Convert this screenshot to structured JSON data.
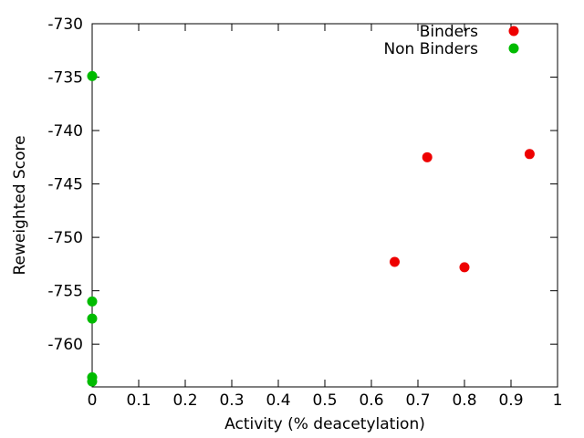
{
  "chart_data": {
    "type": "scatter",
    "title": "",
    "xlabel": "Activity (% deacetylation)",
    "ylabel": "Reweighted Score",
    "xlim": [
      0,
      1
    ],
    "ylim": [
      -764,
      -730
    ],
    "xticks": [
      0,
      0.1,
      0.2,
      0.3,
      0.4,
      0.5,
      0.6,
      0.7,
      0.8,
      0.9,
      1
    ],
    "xtick_labels": [
      "0",
      "0.1",
      "0.2",
      "0.3",
      "0.4",
      "0.5",
      "0.6",
      "0.7",
      "0.8",
      "0.9",
      "1"
    ],
    "yticks": [
      -730,
      -735,
      -740,
      -745,
      -750,
      -755,
      -760
    ],
    "ytick_labels": [
      "-730",
      "-735",
      "-740",
      "-745",
      "-750",
      "-755",
      "-760"
    ],
    "grid": false,
    "legend_position": "top-right",
    "series": [
      {
        "name": "Binders",
        "color": "#ee0000",
        "points": [
          {
            "x": 0.65,
            "y": -752.3
          },
          {
            "x": 0.72,
            "y": -742.5
          },
          {
            "x": 0.8,
            "y": -752.8
          },
          {
            "x": 0.94,
            "y": -742.2
          }
        ]
      },
      {
        "name": "Non Binders",
        "color": "#00bb00",
        "points": [
          {
            "x": 0,
            "y": -734.9
          },
          {
            "x": 0,
            "y": -756.0
          },
          {
            "x": 0,
            "y": -757.6
          },
          {
            "x": 0,
            "y": -763.1
          },
          {
            "x": 0,
            "y": -763.5
          }
        ]
      }
    ]
  }
}
